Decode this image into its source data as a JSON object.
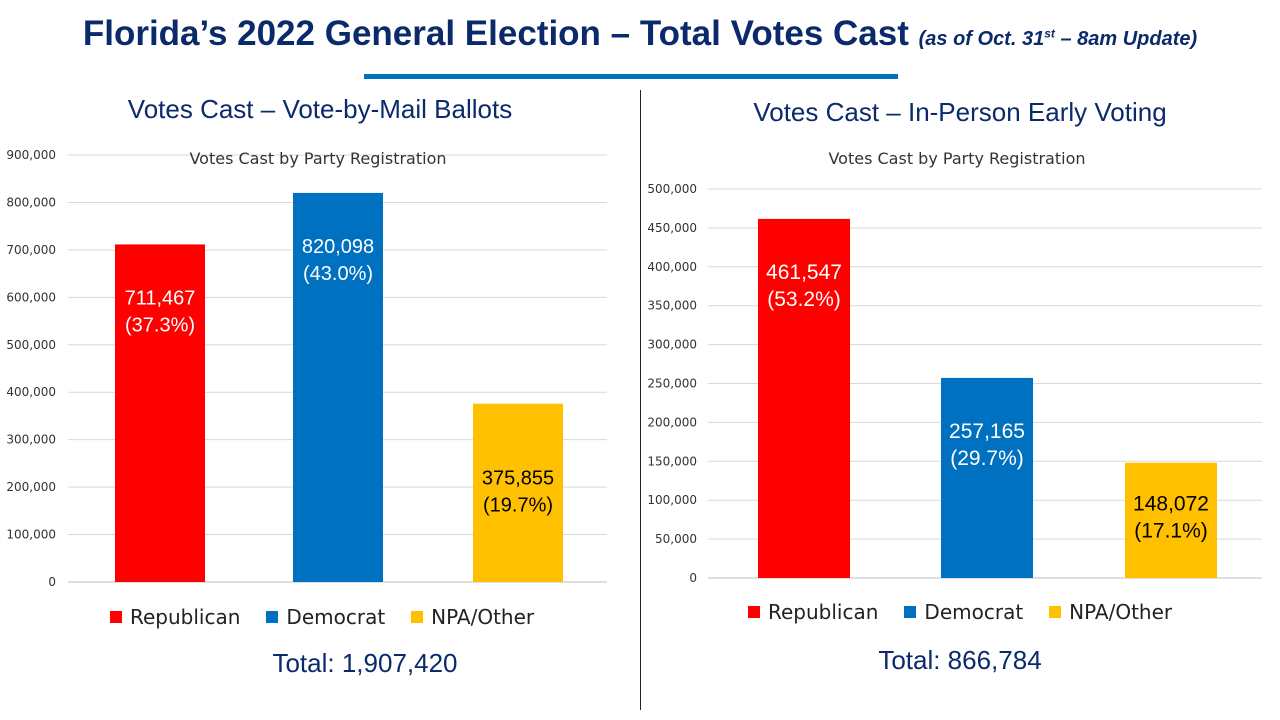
{
  "header": {
    "title": "Florida’s 2022 General Election – Total Votes Cast",
    "subtitle_pre": "(as of Oct. 31",
    "subtitle_sup": "st",
    "subtitle_post": " – 8am Update)"
  },
  "panels": [
    {
      "heading": "Votes Cast – Vote-by-Mail Ballots",
      "total": "Total: 1,907,420"
    },
    {
      "heading": "Votes Cast – In-Person Early Voting",
      "total": "Total: 866,784"
    }
  ],
  "legend": [
    {
      "label": "Republican",
      "color": "#ff0000"
    },
    {
      "label": "Democrat",
      "color": "#0070c0"
    },
    {
      "label": "NPA/Other",
      "color": "#ffc000"
    }
  ],
  "chart_data": [
    {
      "type": "bar",
      "title": "Votes Cast by Party Registration",
      "categories": [
        "Republican",
        "Democrat",
        "NPA/Other"
      ],
      "values": [
        711467,
        820098,
        375855
      ],
      "data_labels": [
        [
          "711,467",
          "(37.3%)"
        ],
        [
          "820,098",
          "(43.0%)"
        ],
        [
          "375,855",
          "(19.7%)"
        ]
      ],
      "colors": [
        "#ff0000",
        "#0070c0",
        "#ffc000"
      ],
      "label_colors": [
        "#ffffff",
        "#ffffff",
        "#000000"
      ],
      "ylim": [
        0,
        900000
      ],
      "yticks": [
        "0",
        "100,000",
        "200,000",
        "300,000",
        "400,000",
        "500,000",
        "600,000",
        "700,000",
        "800,000",
        "900,000"
      ],
      "grid": true
    },
    {
      "type": "bar",
      "title": "Votes Cast by Party Registration",
      "categories": [
        "Republican",
        "Democrat",
        "NPA/Other"
      ],
      "values": [
        461547,
        257165,
        148072
      ],
      "data_labels": [
        [
          "461,547",
          "(53.2%)"
        ],
        [
          "257,165",
          "(29.7%)"
        ],
        [
          "148,072",
          "(17.1%)"
        ]
      ],
      "colors": [
        "#ff0000",
        "#0070c0",
        "#ffc000"
      ],
      "label_colors": [
        "#ffffff",
        "#ffffff",
        "#000000"
      ],
      "ylim": [
        0,
        500000
      ],
      "yticks": [
        "0",
        "50,000",
        "100,000",
        "150,000",
        "200,000",
        "250,000",
        "300,000",
        "350,000",
        "400,000",
        "450,000",
        "500,000"
      ],
      "grid": true
    }
  ]
}
